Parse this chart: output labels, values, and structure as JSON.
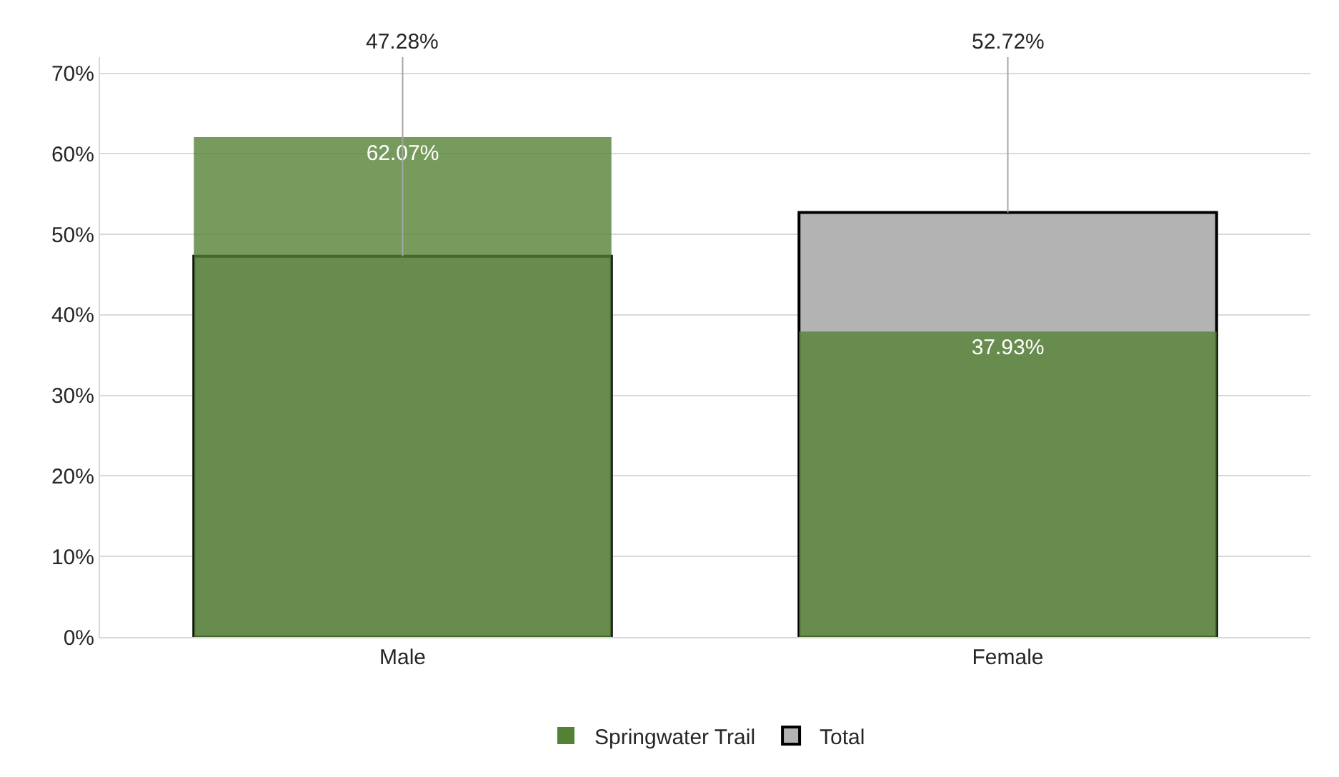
{
  "chart_data": {
    "type": "bar",
    "categories": [
      "Male",
      "Female"
    ],
    "series": [
      {
        "name": "Springwater Trail",
        "color": "#548235",
        "values": [
          62.07,
          37.93
        ],
        "value_labels": [
          "62.07%",
          "37.93%"
        ]
      },
      {
        "name": "Total",
        "color": "#b3b3b3",
        "values": [
          47.28,
          52.72
        ],
        "value_labels": [
          "47.28%",
          "52.72%"
        ]
      }
    ],
    "ylim": [
      0,
      72
    ],
    "yticks": [
      {
        "value": 0,
        "label": "0%"
      },
      {
        "value": 10,
        "label": "10%"
      },
      {
        "value": 20,
        "label": "20%"
      },
      {
        "value": 30,
        "label": "30%"
      },
      {
        "value": 40,
        "label": "40%"
      },
      {
        "value": 50,
        "label": "50%"
      },
      {
        "value": 60,
        "label": "60%"
      },
      {
        "value": 70,
        "label": "70%"
      }
    ],
    "grid": "y",
    "legend": "bottom"
  }
}
